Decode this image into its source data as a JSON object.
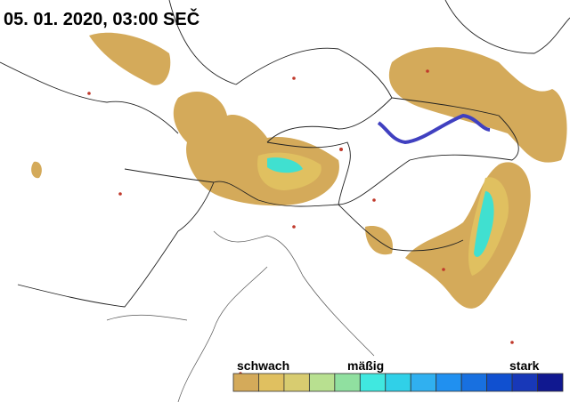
{
  "header": {
    "title": "05. 01. 2020, 03:00 SEČ"
  },
  "legend": {
    "labels": [
      "schwach",
      "mäßig",
      "stark"
    ],
    "colors": [
      "#d4aa5a",
      "#e0c060",
      "#d8cc70",
      "#b8e090",
      "#90e0a0",
      "#40e8e0",
      "#30d0e8",
      "#30b0f0",
      "#2090f0",
      "#1870e0",
      "#1050d0",
      "#1838b8",
      "#101890"
    ]
  }
}
